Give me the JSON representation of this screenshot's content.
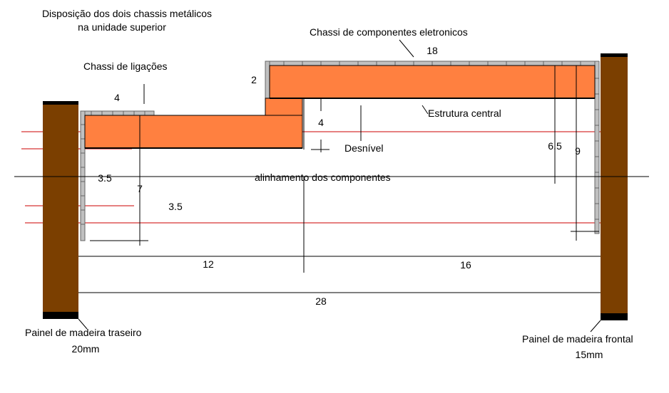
{
  "title": {
    "line1": "Disposição dos dois chassis metálicos",
    "line2": "na unidade superior"
  },
  "labels": {
    "chassi_componentes": "Chassi de componentes eletronicos",
    "chassi_ligacoes": "Chassi de ligações",
    "estrutura_central": "Estrutura central",
    "desnivel": "Desnível",
    "alinhamento": "alinhamento dos componentes",
    "painel_traseiro": "Painel de madeira traseiro",
    "painel_traseiro_esp": "20mm",
    "painel_frontal": "Painel de madeira frontal",
    "painel_frontal_esp": "15mm"
  },
  "dimensions": {
    "d18": "18",
    "d2": "2",
    "d4_top": "4",
    "d4_step": "4",
    "d6_5": "6.5",
    "d9": "9",
    "d3_5_left": "3.5",
    "d7": "7",
    "d3_5_mid": "3.5",
    "d12": "12",
    "d16": "16",
    "d28": "28"
  },
  "colors": {
    "wood": "#7B3F00",
    "wood_edge": "#000000",
    "chassis_fill": "#FF8040",
    "metal_grey": "#C0C0C0",
    "red_line": "#CC0000"
  }
}
